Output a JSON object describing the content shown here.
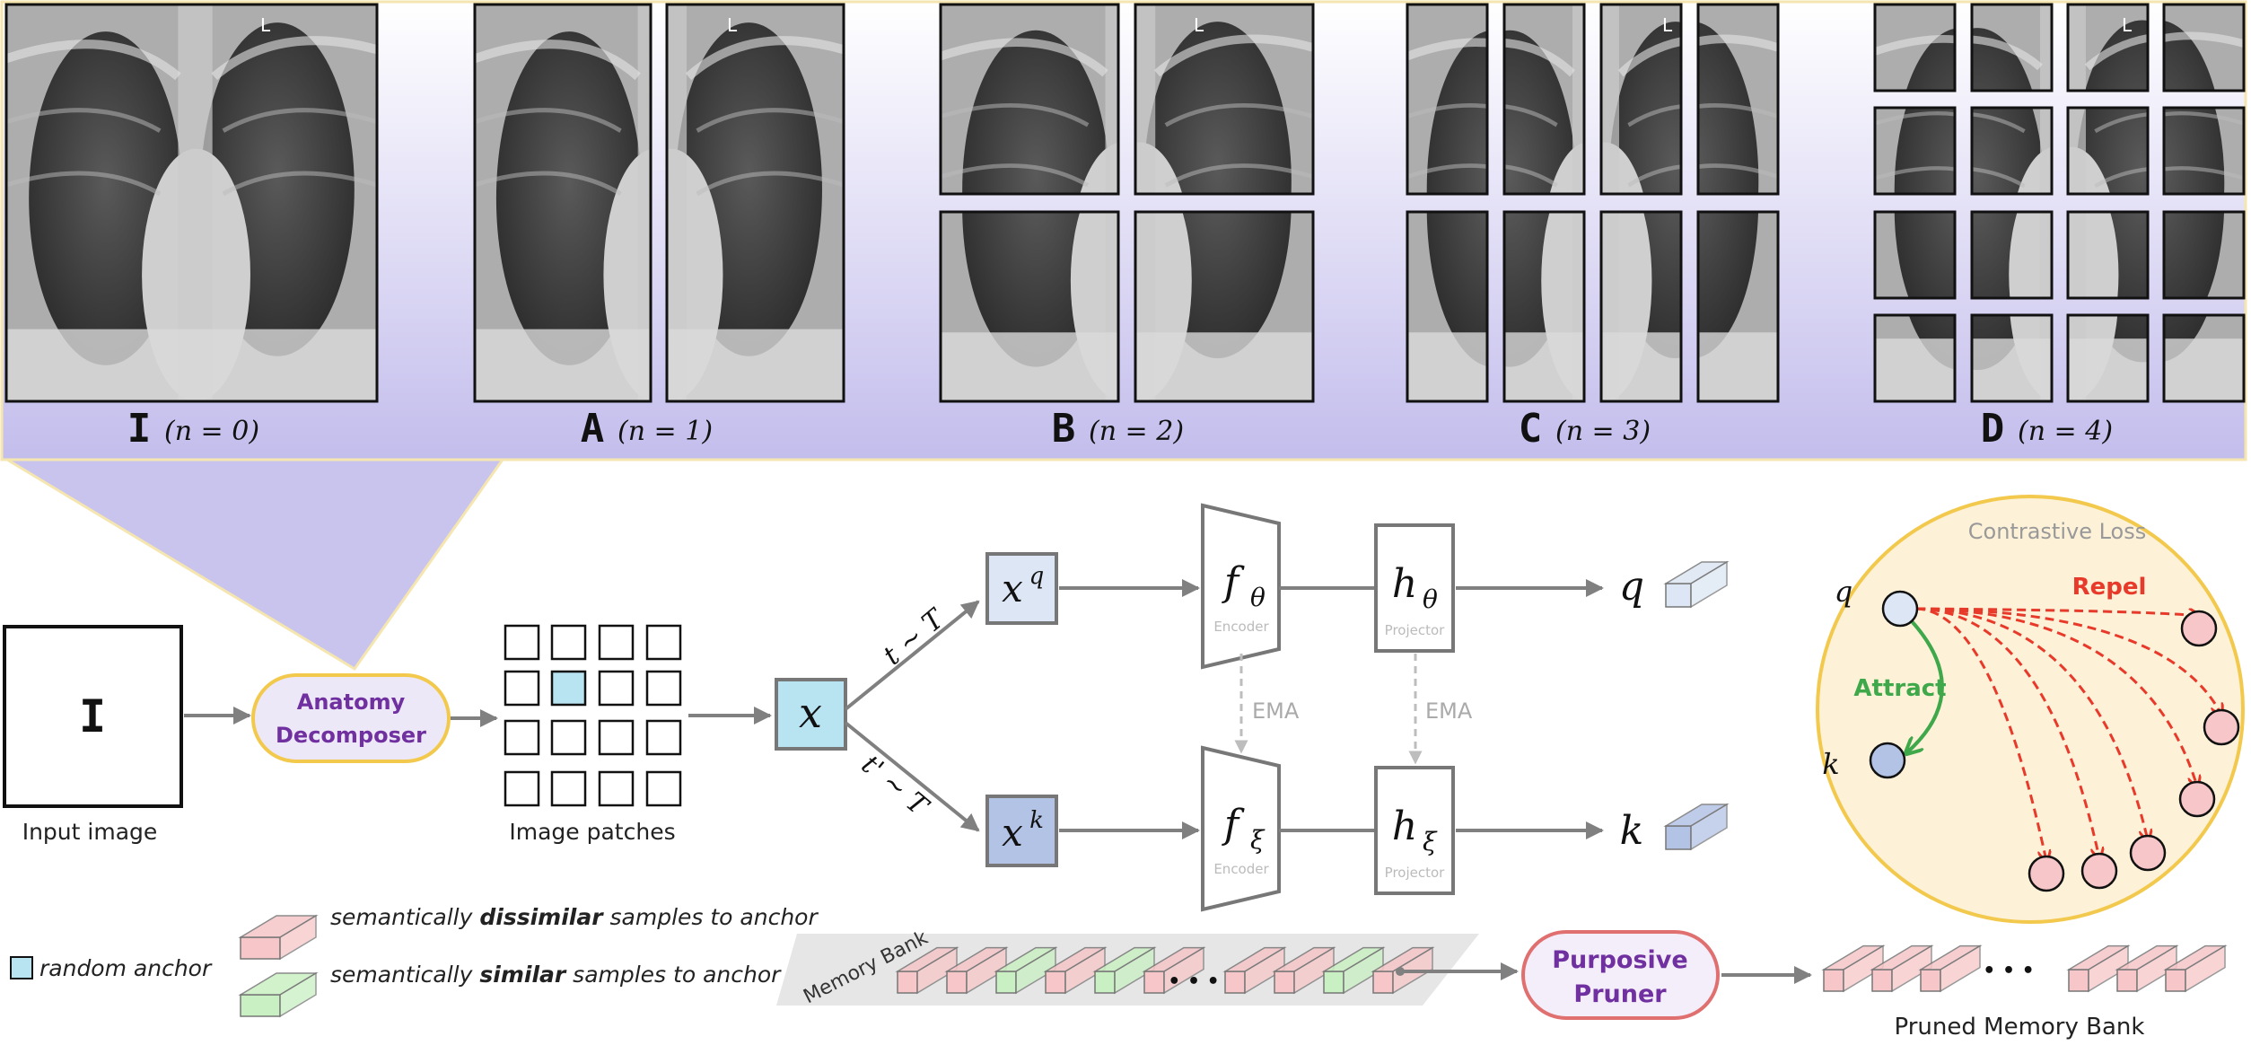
{
  "panels": {
    "I": {
      "letter": "I",
      "formula": "(n = 0)"
    },
    "A": {
      "letter": "A",
      "formula": "(n = 1)"
    },
    "B": {
      "letter": "B",
      "formula": "(n = 2)"
    },
    "C": {
      "letter": "C",
      "formula": "(n = 3)"
    },
    "D": {
      "letter": "D",
      "formula": "(n = 4)"
    },
    "side_marker": "L"
  },
  "pipeline": {
    "input_letter": "I",
    "input_caption": "Input image",
    "decomposer_line1": "Anatomy",
    "decomposer_line2": "Decomposer",
    "patches_caption": "Image patches",
    "x": "x",
    "xq_base": "x",
    "xq_sup": "q",
    "xk_base": "x",
    "xk_sup": "k",
    "t_label": "t ~ T",
    "t_prime_label": "t' ~ T",
    "f_theta": "f",
    "f_theta_sub": "θ",
    "encoder1": "Encoder",
    "h_theta": "h",
    "h_theta_sub": "θ",
    "projector1": "Projector",
    "f_xi": "f",
    "f_xi_sub": "ξ",
    "encoder2": "Encoder",
    "h_xi": "h",
    "h_xi_sub": "ξ",
    "projector2": "Projector",
    "ema1": "EMA",
    "ema2": "EMA",
    "q": "q",
    "k": "k"
  },
  "contrastive": {
    "title": "Contrastive Loss",
    "q": "q",
    "k": "k",
    "repel": "Repel",
    "attract": "Attract"
  },
  "legend": {
    "anchor": "random anchor",
    "dissimilar_pre": "semantically ",
    "dissimilar_bold": "dissimilar",
    "dissimilar_post": " samples to anchor",
    "similar_pre": "semantically ",
    "similar_bold": "similar",
    "similar_post": " samples to anchor"
  },
  "memory": {
    "bank_label": "Memory Bank",
    "ellipsis": "• • •",
    "pruner_line1": "Purposive",
    "pruner_line2": "Pruner",
    "pruned_label": "Pruned Memory Bank",
    "pruned_ellipsis": "• • •"
  },
  "colors": {
    "purple_text": "#7030a0",
    "decomposer_border": "#f2c94c",
    "decomposer_fill": "#ede8f8",
    "pruner_border": "#e07070",
    "pruner_fill": "#f3eefa",
    "lavender": "#c9c4ee",
    "anchor": "#b8e4f2",
    "xq_fill": "#dce6f4",
    "xk_fill": "#b3c3e6",
    "red_arrow": "#e83a2a",
    "green_arrow": "#3ea84a",
    "loss_fill": "#fdf1d8",
    "loss_border": "#f2c94c",
    "pink_node": "#f6c6c8",
    "pink_bar": "#f6c6c8",
    "green_bar": "#c9f0c2",
    "gray": "#808080"
  }
}
